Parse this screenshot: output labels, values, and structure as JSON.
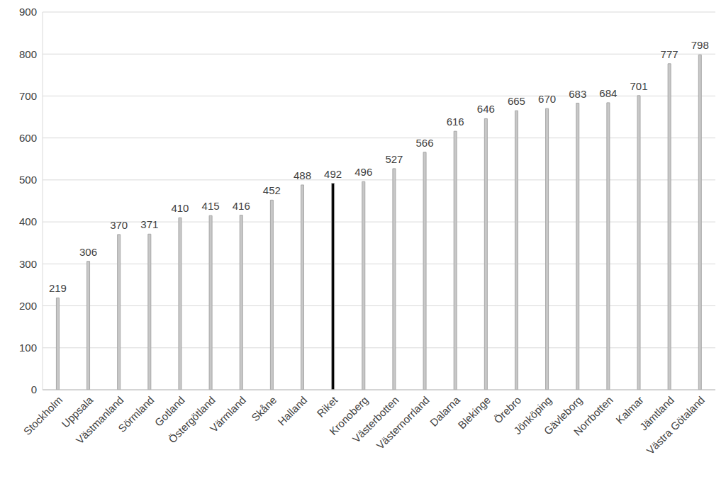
{
  "chart_data": {
    "type": "bar",
    "categories": [
      "Stockholm",
      "Uppsala",
      "Västmanland",
      "Sörmland",
      "Gotland",
      "Östergötland",
      "Värmland",
      "Skåne",
      "Halland",
      "Riket",
      "Kronoberg",
      "Västerbotten",
      "Västernorrland",
      "Dalarna",
      "Blekinge",
      "Örebro",
      "Jönköping",
      "Gävleborg",
      "Norrbotten",
      "Kalmar",
      "Jämtland",
      "Västra Götaland"
    ],
    "values": [
      219,
      306,
      370,
      371,
      410,
      415,
      416,
      452,
      488,
      492,
      496,
      527,
      566,
      616,
      646,
      665,
      670,
      683,
      684,
      701,
      777,
      798
    ],
    "colors": [
      "#c8c8c8",
      "#c8c8c8",
      "#c8c8c8",
      "#c8c8c8",
      "#c8c8c8",
      "#c8c8c8",
      "#c8c8c8",
      "#c8c8c8",
      "#c8c8c8",
      "#000000",
      "#c8c8c8",
      "#c8c8c8",
      "#c8c8c8",
      "#c8c8c8",
      "#c8c8c8",
      "#c8c8c8",
      "#c8c8c8",
      "#c8c8c8",
      "#c8c8c8",
      "#c8c8c8",
      "#c8c8c8",
      "#c8c8c8"
    ],
    "ylim": [
      0,
      900
    ],
    "yticks": [
      0,
      100,
      200,
      300,
      400,
      500,
      600,
      700,
      800,
      900
    ],
    "grid": true,
    "data_labels": true
  }
}
